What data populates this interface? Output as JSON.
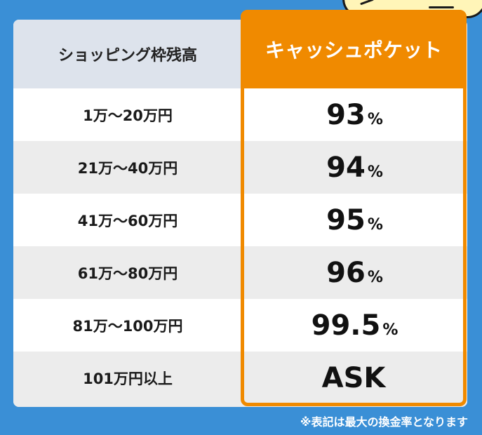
{
  "table": {
    "header_left": "ショッピング枠残高",
    "header_right": "キャッシュポケット",
    "rows": [
      {
        "range": "1万〜20万円",
        "rate": "93",
        "unit": "%"
      },
      {
        "range": "21万〜40万円",
        "rate": "94",
        "unit": "%"
      },
      {
        "range": "41万〜60万円",
        "rate": "95",
        "unit": "%"
      },
      {
        "range": "61万〜80万円",
        "rate": "96",
        "unit": "%"
      },
      {
        "range": "81万〜100万円",
        "rate": "99.5",
        "unit": "%"
      },
      {
        "range": "101万円以上",
        "rate": "ASK",
        "unit": ""
      }
    ]
  },
  "note": "※表記は最大の換金率となります",
  "colors": {
    "background": "#3a8fd6",
    "accent": "#f08a00",
    "header_left_bg": "#dde3ec",
    "row_white": "#ffffff",
    "row_gray": "#ececec"
  },
  "decor": {
    "mascot": "mascot-illustration"
  }
}
